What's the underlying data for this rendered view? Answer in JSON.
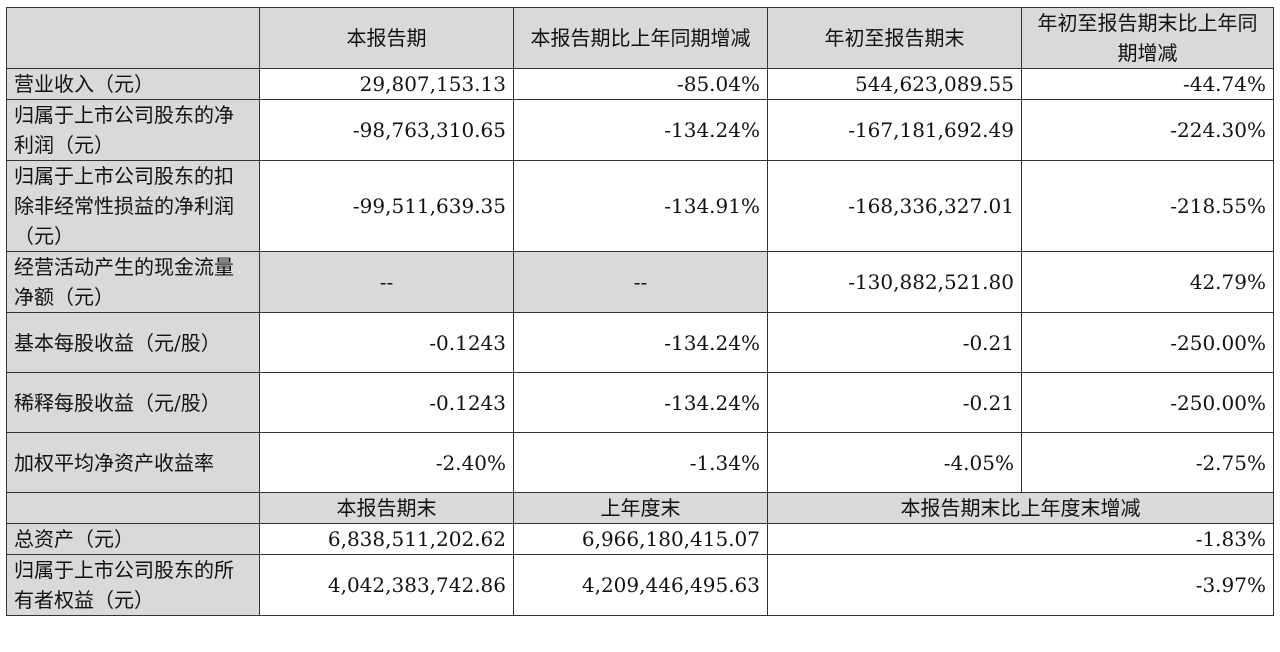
{
  "header": {
    "col_label": "",
    "col1": "本报告期",
    "col2": "本报告期比上年同期增减",
    "col3": "年初至报告期末",
    "col4": "年初至报告期末比上年同期增减"
  },
  "rows": [
    {
      "label": "营业收入（元）",
      "v1": "29,807,153.13",
      "v2": "-85.04%",
      "v3": "544,623,089.55",
      "v4": "-44.74%"
    },
    {
      "label": "归属于上市公司股东的净利润（元）",
      "v1": "-98,763,310.65",
      "v2": "-134.24%",
      "v3": "-167,181,692.49",
      "v4": "-224.30%"
    },
    {
      "label": "归属于上市公司股东的扣除非经常性损益的净利润（元）",
      "v1": "-99,511,639.35",
      "v2": "-134.91%",
      "v3": "-168,336,327.01",
      "v4": "-218.55%"
    },
    {
      "label": "经营活动产生的现金流量净额（元）",
      "v1": "--",
      "v2": "--",
      "v3": "-130,882,521.80",
      "v4": "42.79%"
    },
    {
      "label": "基本每股收益（元/股）",
      "v1": "-0.1243",
      "v2": "-134.24%",
      "v3": "-0.21",
      "v4": "-250.00%"
    },
    {
      "label": "稀释每股收益（元/股）",
      "v1": "-0.1243",
      "v2": "-134.24%",
      "v3": "-0.21",
      "v4": "-250.00%"
    },
    {
      "label": "加权平均净资产收益率",
      "v1": "-2.40%",
      "v2": "-1.34%",
      "v3": "-4.05%",
      "v4": "-2.75%"
    }
  ],
  "subheader": {
    "col1": "本报告期末",
    "col2": "上年度末",
    "col3": "本报告期末比上年度末增减"
  },
  "balance_rows": [
    {
      "label": "总资产（元）",
      "v1": "6,838,511,202.62",
      "v2": "6,966,180,415.07",
      "v3": "-1.83%"
    },
    {
      "label": "归属于上市公司股东的所有者权益（元）",
      "v1": "4,042,383,742.86",
      "v2": "4,209,446,495.63",
      "v3": "-3.97%"
    }
  ],
  "colors": {
    "header_fill": "#d9d9d9",
    "border": "#333333"
  }
}
